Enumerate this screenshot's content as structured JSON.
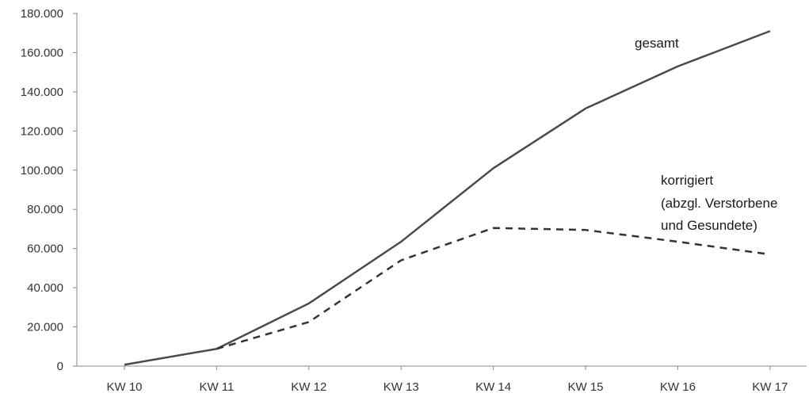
{
  "chart_data": {
    "type": "line",
    "categories": [
      "KW 10",
      "KW 11",
      "KW 12",
      "KW 13",
      "KW 14",
      "KW 15",
      "KW 16",
      "KW 17"
    ],
    "y_tick_labels": [
      "0",
      "20.000",
      "40.000",
      "60.000",
      "80.000",
      "100.000",
      "120.000",
      "140.000",
      "160.000",
      "180.000"
    ],
    "ylim": [
      0,
      180000
    ],
    "grid": false,
    "series": [
      {
        "name": "gesamt",
        "style": "solid",
        "color": "#4a4a4a",
        "values": [
          700,
          8800,
          32000,
          63500,
          101000,
          131500,
          153000,
          171000
        ]
      },
      {
        "name": "korrigiert (abzgl. Verstorbene und Gesundete)",
        "style": "dashed",
        "color": "#333333",
        "values": [
          null,
          8800,
          22500,
          54000,
          70500,
          69500,
          63500,
          57000
        ]
      }
    ],
    "annotations": {
      "gesamt": [
        "gesamt"
      ],
      "korrigiert": [
        "korrigiert",
        "(abzgl. Verstorbene",
        "und Gesundete)"
      ]
    }
  }
}
